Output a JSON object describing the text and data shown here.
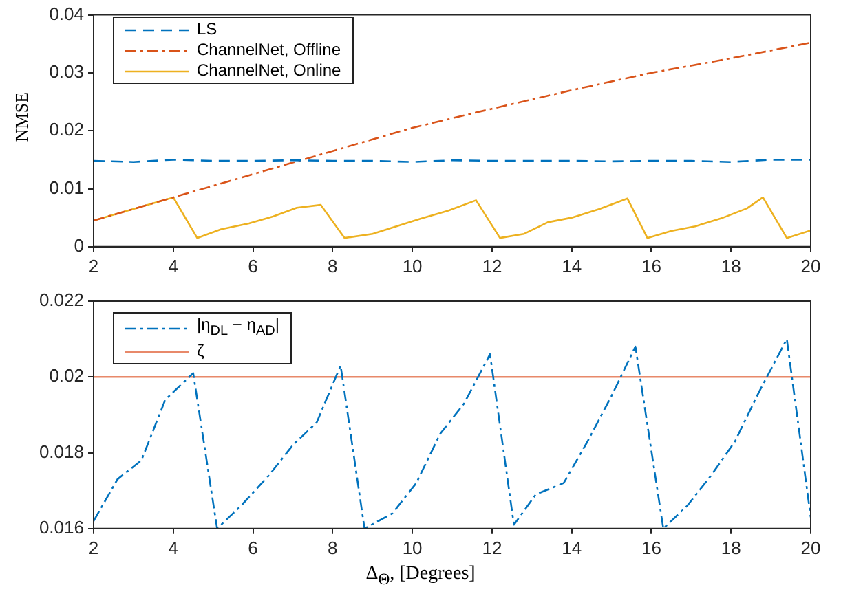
{
  "chart_data": [
    {
      "type": "line",
      "ylabel": "NMSE",
      "xlim": [
        2,
        20
      ],
      "xticks": [
        2,
        4,
        6,
        8,
        10,
        12,
        14,
        16,
        18,
        20
      ],
      "ylim": [
        0,
        0.04
      ],
      "yticks": [
        0,
        0.01,
        0.02,
        0.03,
        0.04
      ],
      "grid": false,
      "legend": "top left",
      "marker": "none",
      "series": [
        {
          "name": "LS",
          "color": "#0072bd",
          "line_style": "dashed",
          "x": [
            2,
            3,
            4,
            5,
            6,
            7,
            8,
            9,
            10,
            11,
            12,
            13,
            14,
            15,
            16,
            17,
            18,
            19,
            20
          ],
          "values": [
            0.0148,
            0.0146,
            0.015,
            0.0148,
            0.0148,
            0.0149,
            0.0148,
            0.0148,
            0.0146,
            0.0149,
            0.0148,
            0.0148,
            0.0148,
            0.0147,
            0.0148,
            0.0148,
            0.0146,
            0.015,
            0.015
          ]
        },
        {
          "name": "ChannelNet, Offline",
          "color": "#d95319",
          "line_style": "dashdot",
          "x": [
            2,
            4,
            6,
            8,
            10,
            12,
            14,
            16,
            18,
            20
          ],
          "values": [
            0.0045,
            0.0085,
            0.0125,
            0.0165,
            0.0205,
            0.0238,
            0.027,
            0.03,
            0.0325,
            0.0352
          ]
        },
        {
          "name": "ChannelNet, Online",
          "color": "#edb120",
          "line_style": "solid",
          "x": [
            2,
            4,
            4.6,
            5.2,
            5.9,
            6.5,
            7.1,
            7.7,
            8.3,
            9.0,
            9.6,
            10.2,
            10.9,
            11.6,
            12.2,
            12.8,
            13.4,
            14.0,
            14.7,
            15.4,
            15.9,
            16.5,
            17.1,
            17.8,
            18.4,
            18.8,
            19.4,
            20
          ],
          "values": [
            0.0045,
            0.0085,
            0.0015,
            0.003,
            0.004,
            0.0052,
            0.0067,
            0.0072,
            0.0015,
            0.0022,
            0.0035,
            0.0048,
            0.0062,
            0.008,
            0.0015,
            0.0022,
            0.0042,
            0.005,
            0.0065,
            0.0083,
            0.0015,
            0.0027,
            0.0035,
            0.005,
            0.0066,
            0.0085,
            0.0015,
            0.0028
          ]
        }
      ]
    },
    {
      "type": "line",
      "xlabel": "Δ$_{Θ}$, [Degrees]",
      "xlim": [
        2,
        20
      ],
      "xticks": [
        2,
        4,
        6,
        8,
        10,
        12,
        14,
        16,
        18,
        20
      ],
      "ylim": [
        0.016,
        0.022
      ],
      "yticks": [
        0.016,
        0.018,
        0.02,
        0.022
      ],
      "grid": false,
      "legend": "top left",
      "marker": "none",
      "series": [
        {
          "name": "|η$_{DL}$ − η$_{AD}$|",
          "color": "#0072bd",
          "line_style": "dashdot",
          "x": [
            2,
            2.6,
            3.2,
            3.8,
            4.5,
            5.1,
            5.7,
            6.4,
            7,
            7.6,
            8.2,
            8.8,
            9.5,
            10.1,
            10.7,
            11.3,
            11.95,
            12.55,
            13.1,
            13.8,
            14.4,
            15.0,
            15.6,
            16.3,
            16.9,
            17.5,
            18.1,
            18.7,
            19.4,
            20
          ],
          "values": [
            0.0162,
            0.0173,
            0.0178,
            0.0194,
            0.0201,
            0.016,
            0.0166,
            0.0174,
            0.0182,
            0.0188,
            0.0203,
            0.016,
            0.0164,
            0.0172,
            0.0185,
            0.0193,
            0.0206,
            0.0161,
            0.0169,
            0.0172,
            0.0183,
            0.0195,
            0.0208,
            0.016,
            0.0166,
            0.0174,
            0.0183,
            0.0196,
            0.021,
            0.0163
          ]
        },
        {
          "name": "ζ",
          "color": "#e8896a",
          "line_style": "solid",
          "x": [
            2,
            20
          ],
          "values": [
            0.02,
            0.02
          ]
        }
      ]
    }
  ]
}
